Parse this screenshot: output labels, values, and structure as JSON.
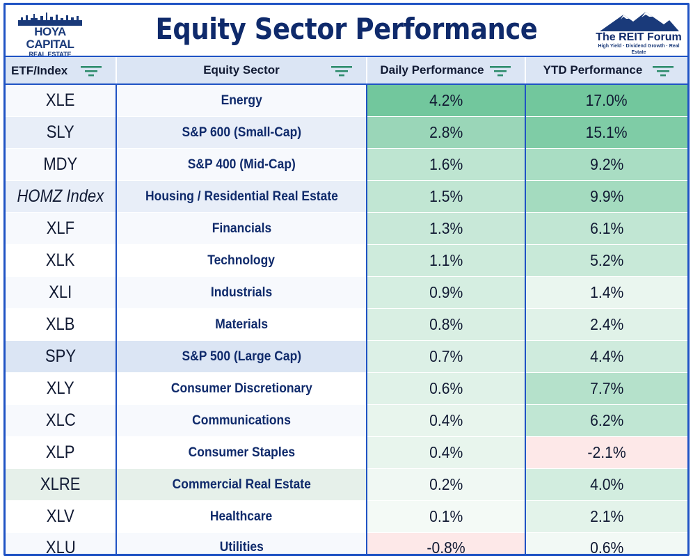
{
  "title": "Equity Sector Performance",
  "logo_left": {
    "brand": "HOYA CAPITAL",
    "sub": "REAL ESTATE"
  },
  "logo_right": {
    "name": "The REIT Forum",
    "tagline": "High Yield · Dividend Growth · Real Estate"
  },
  "colors": {
    "border_blue": "#1f53c4",
    "title_navy": "#0f2a6b",
    "header_bg": "#dbe5f4",
    "pos_strong": "#72c79d",
    "neg_tint": "#fde8e8"
  },
  "headers": {
    "etf": "ETF/Index",
    "sector": "Equity Sector",
    "daily": "Daily Performance",
    "ytd": "YTD Performance",
    "filter_icon": "filter-icon"
  },
  "rows": [
    {
      "etf": "XLE",
      "sector": "Energy",
      "daily": "4.2%",
      "ytd": "17.0%"
    },
    {
      "etf": "SLY",
      "sector": "S&P 600 (Small-Cap)",
      "daily": "2.8%",
      "ytd": "15.1%"
    },
    {
      "etf": "MDY",
      "sector": "S&P 400 (Mid-Cap)",
      "daily": "1.6%",
      "ytd": "9.2%"
    },
    {
      "etf": "HOMZ Index",
      "sector": "Housing / Residential Real Estate",
      "daily": "1.5%",
      "ytd": "9.9%"
    },
    {
      "etf": "XLF",
      "sector": "Financials",
      "daily": "1.3%",
      "ytd": "6.1%"
    },
    {
      "etf": "XLK",
      "sector": "Technology",
      "daily": "1.1%",
      "ytd": "5.2%"
    },
    {
      "etf": "XLI",
      "sector": "Industrials",
      "daily": "0.9%",
      "ytd": "1.4%"
    },
    {
      "etf": "XLB",
      "sector": "Materials",
      "daily": "0.8%",
      "ytd": "2.4%"
    },
    {
      "etf": "SPY",
      "sector": "S&P 500 (Large Cap)",
      "daily": "0.7%",
      "ytd": "4.4%"
    },
    {
      "etf": "XLY",
      "sector": "Consumer Discretionary",
      "daily": "0.6%",
      "ytd": "7.7%"
    },
    {
      "etf": "XLC",
      "sector": "Communications",
      "daily": "0.4%",
      "ytd": "6.2%"
    },
    {
      "etf": "XLP",
      "sector": "Consumer Staples",
      "daily": "0.4%",
      "ytd": "-2.1%"
    },
    {
      "etf": "XLRE",
      "sector": "Commercial Real Estate",
      "daily": "0.2%",
      "ytd": "4.0%"
    },
    {
      "etf": "XLV",
      "sector": "Healthcare",
      "daily": "0.1%",
      "ytd": "2.1%"
    },
    {
      "etf": "XLU",
      "sector": "Utilities",
      "daily": "-0.8%",
      "ytd": "0.6%"
    }
  ],
  "chart_data": {
    "type": "table",
    "title": "Equity Sector Performance",
    "columns": [
      "ETF/Index",
      "Equity Sector",
      "Daily Performance",
      "YTD Performance"
    ],
    "daily_pct": [
      4.2,
      2.8,
      1.6,
      1.5,
      1.3,
      1.1,
      0.9,
      0.8,
      0.7,
      0.6,
      0.4,
      0.4,
      0.2,
      0.1,
      -0.8
    ],
    "ytd_pct": [
      17.0,
      15.1,
      9.2,
      9.9,
      6.1,
      5.2,
      1.4,
      2.4,
      4.4,
      7.7,
      6.2,
      -2.1,
      4.0,
      2.1,
      0.6
    ],
    "highlighted_rows": [
      "SLY",
      "HOMZ Index",
      "SPY",
      "XLRE"
    ]
  }
}
